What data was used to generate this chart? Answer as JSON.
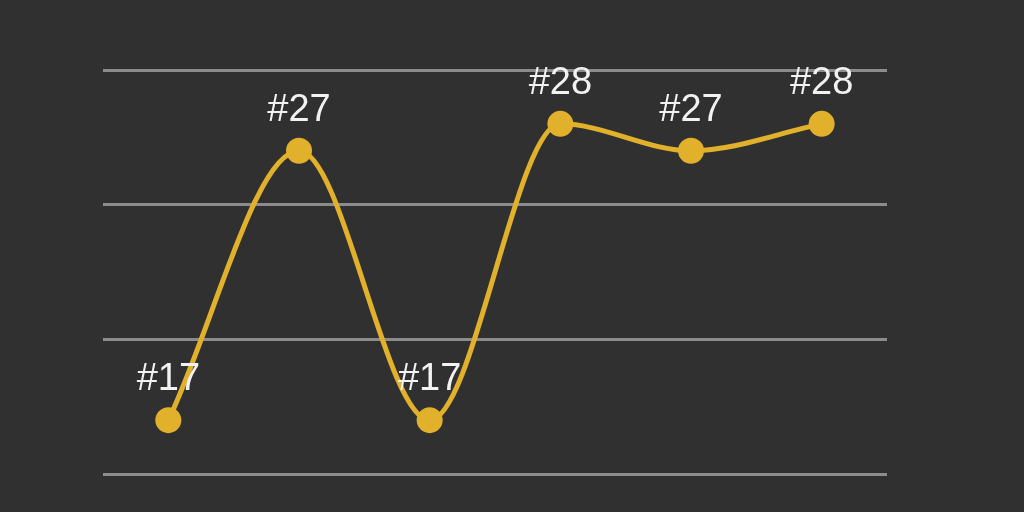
{
  "chart_data": {
    "type": "line",
    "categories": [
      null,
      null,
      null,
      null,
      null,
      null
    ],
    "series": [
      {
        "color": "#e2b12c",
        "values": [
          17,
          27,
          17,
          28,
          27,
          28
        ],
        "value_labels": [
          "#17",
          "#27",
          "#17",
          "#28",
          "#27",
          "#28"
        ]
      }
    ],
    "ylim": [
      15,
      30
    ],
    "yticks": [
      15,
      20,
      25,
      30
    ],
    "grid": "y",
    "marker": "circle",
    "tick_labels": false
  }
}
